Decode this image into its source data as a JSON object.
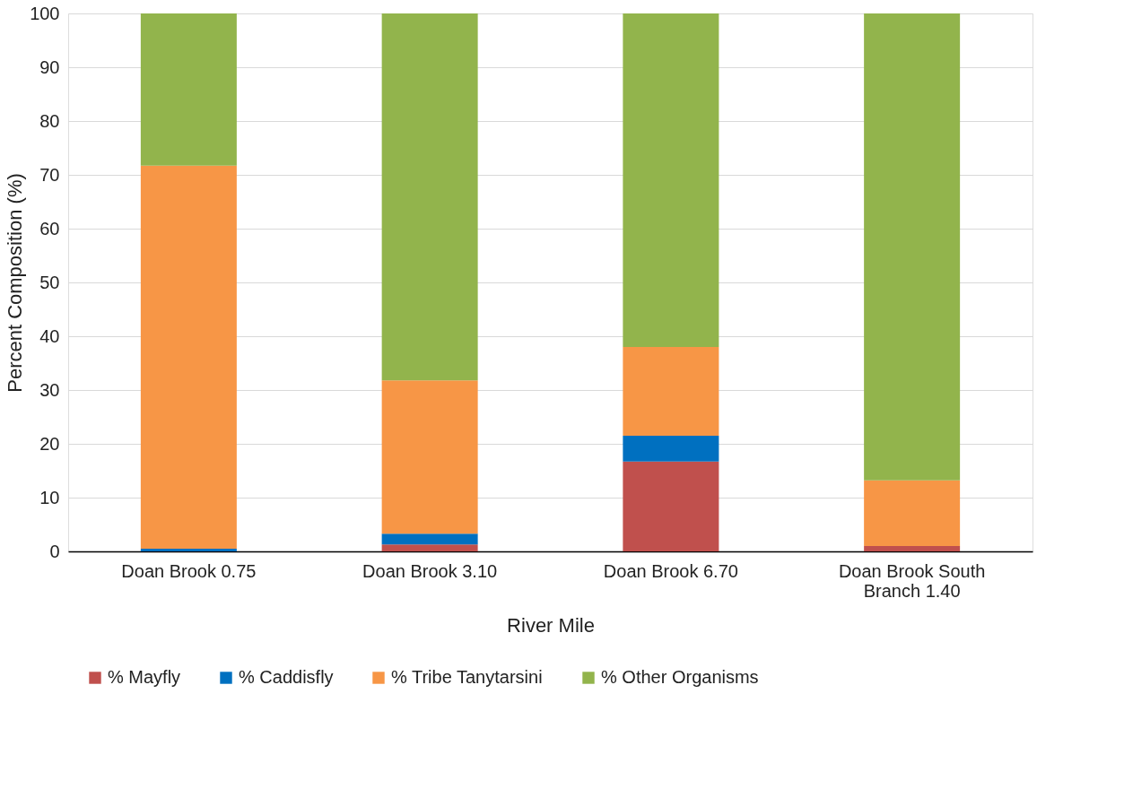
{
  "chart_data": {
    "type": "bar",
    "stacked": true,
    "xlabel": "River Mile",
    "ylabel": "Percent Composition (%)",
    "categories": [
      "Doan Brook 0.75",
      "Doan Brook 3.10",
      "Doan Brook 6.70",
      "Doan Brook South Branch 1.40"
    ],
    "series": [
      {
        "name": "% Mayfly",
        "color": "#c0504d",
        "values": [
          0,
          1.3,
          16.7,
          1.0
        ]
      },
      {
        "name": "% Caddisfly",
        "color": "#0070c0",
        "values": [
          0.5,
          2.0,
          4.8,
          0
        ]
      },
      {
        "name": "% Tribe Tanytarsini",
        "color": "#f79646",
        "values": [
          71.2,
          28.5,
          16.5,
          12.2
        ]
      },
      {
        "name": "% Other Organisms",
        "color": "#92b44c",
        "values": [
          28.3,
          68.2,
          62.0,
          86.8
        ]
      }
    ],
    "ylim": [
      0,
      100
    ],
    "yticks": [
      0,
      10,
      20,
      30,
      40,
      50,
      60,
      70,
      80,
      90,
      100
    ],
    "grid": "y",
    "legend": "bottom"
  }
}
